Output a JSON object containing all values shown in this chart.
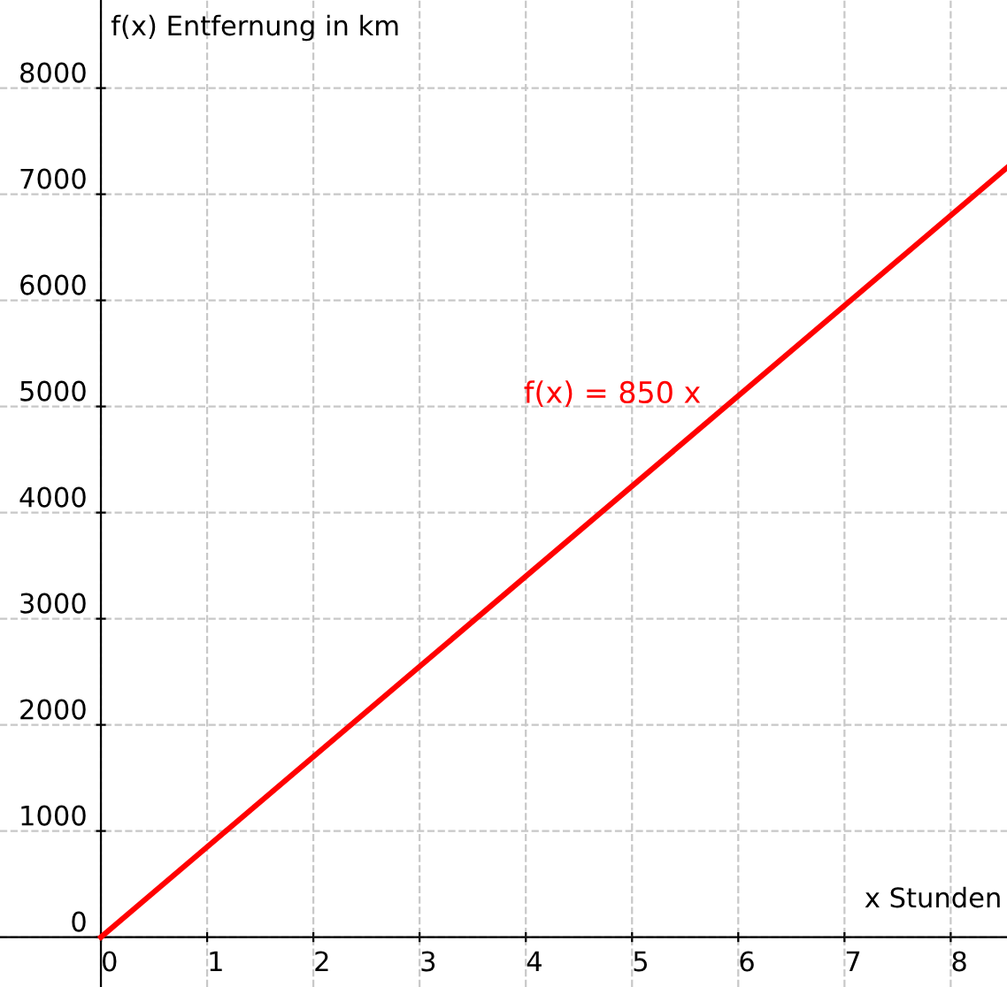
{
  "chart_data": {
    "type": "line",
    "xlabel": "x Stunden",
    "ylabel": "f(x) Entfernung in km",
    "x": [
      0,
      8.53
    ],
    "series": [
      {
        "color": "#ff0000",
        "values": [
          0,
          7250
        ]
      }
    ],
    "annotations": [
      "f(x) = 850 x"
    ],
    "xlim": [
      -0.95,
      8.53
    ],
    "ylim": [
      -470,
      8830
    ],
    "xticks": [
      0,
      1,
      2,
      3,
      4,
      5,
      6,
      7,
      8
    ],
    "yticks": [
      0,
      1000,
      2000,
      3000,
      4000,
      5000,
      6000,
      7000,
      8000
    ],
    "grid": true,
    "legend": false,
    "marker": "none",
    "line_style": "solid"
  }
}
